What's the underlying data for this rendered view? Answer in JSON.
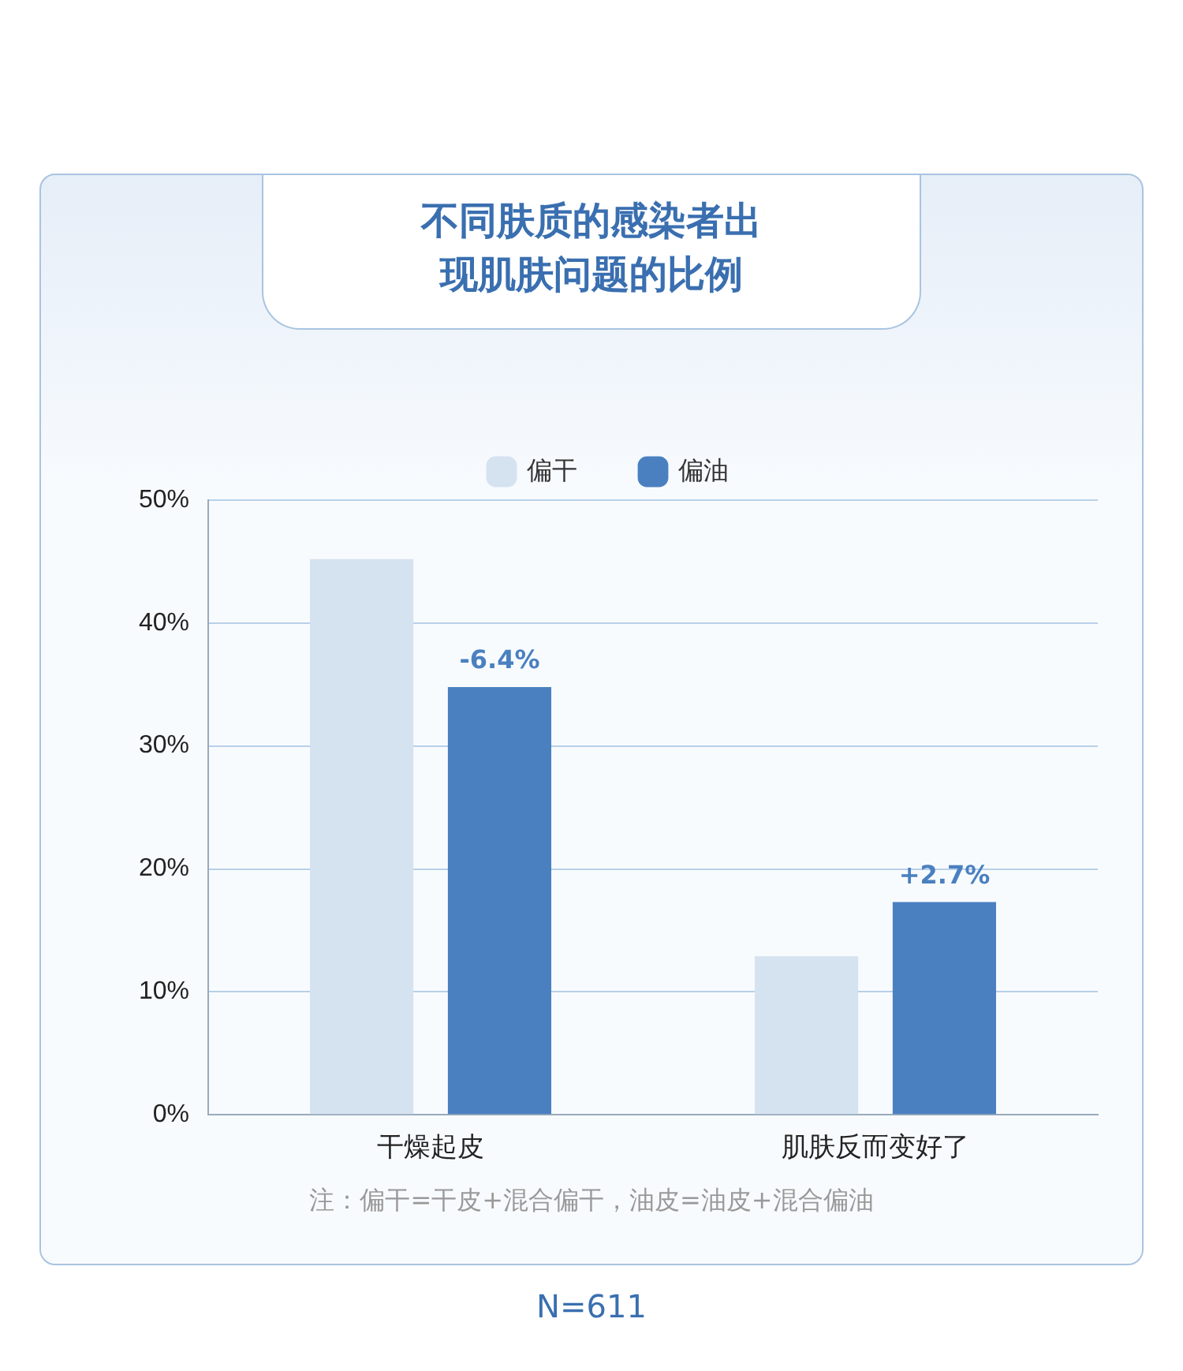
{
  "chart_data": {
    "type": "bar",
    "title": "不同肤质的感染者出现肌肤问题的比例",
    "categories": [
      "干燥起皮",
      "肌肤反而变好了"
    ],
    "series": [
      {
        "name": "偏干",
        "color": "#d5e2f0",
        "values": [
          45.2,
          12.9
        ]
      },
      {
        "name": "偏油",
        "color": "#4a80c0",
        "values": [
          34.8,
          17.3
        ]
      }
    ],
    "ylim": [
      0,
      50
    ],
    "yticks": [
      {
        "value": 0,
        "label": "0%"
      },
      {
        "value": 10,
        "label": "10%"
      },
      {
        "value": 20,
        "label": "20%"
      },
      {
        "value": 30,
        "label": "30%"
      },
      {
        "value": 40,
        "label": "40%"
      },
      {
        "value": 50,
        "label": "50%"
      }
    ],
    "grid": "y",
    "legend": "top",
    "annotations": [
      "-6.4%",
      "+2.7%",
      "注：偏干=干皮+混合偏干，油皮=油皮+混合偏油",
      "N=611"
    ]
  }
}
